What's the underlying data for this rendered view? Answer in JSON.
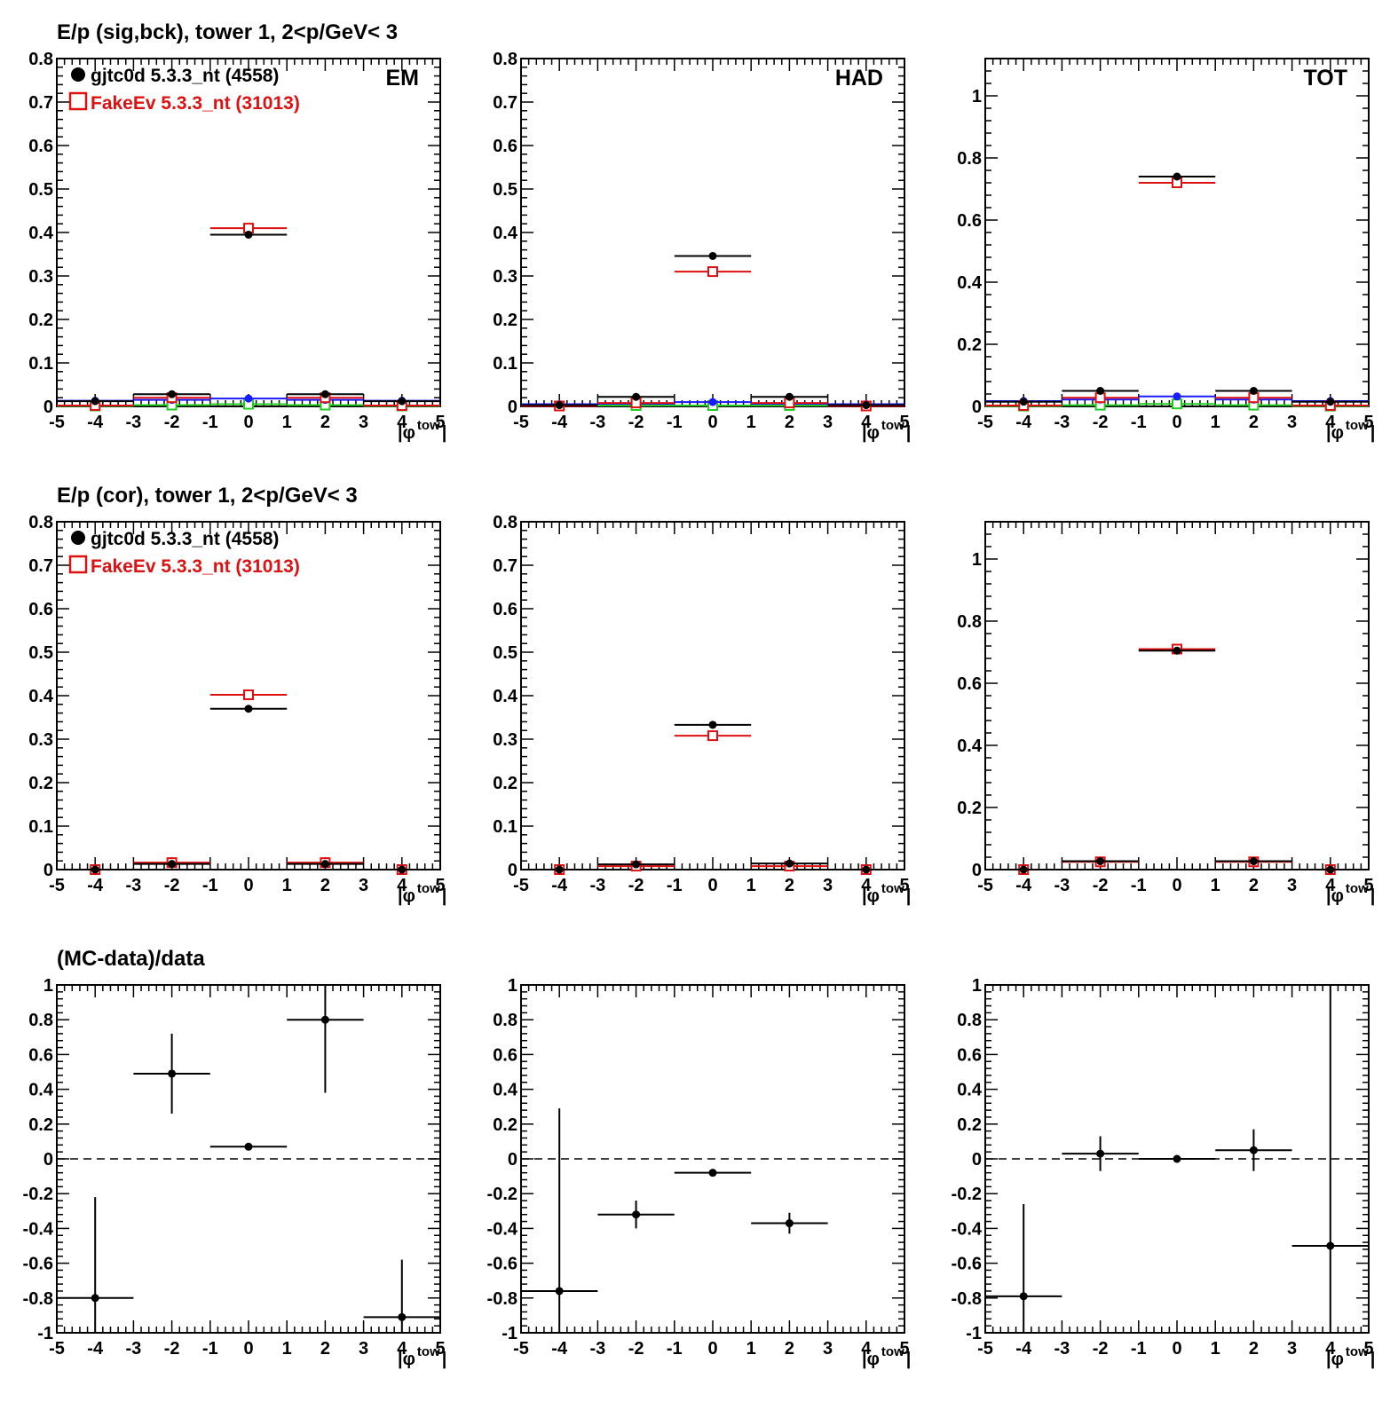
{
  "rows": [
    {
      "title": "E/p (sig,bck), tower 1,  2<p/GeV< 3"
    },
    {
      "title": "E/p (cor), tower 1,  2<p/GeV< 3"
    },
    {
      "title": "(MC-data)/data"
    }
  ],
  "legend": {
    "data_label": "gjtc0d 5.3.3_nt (4558)",
    "mc_label": "FakeEv 5.3.3_nt (31013)"
  },
  "colors": {
    "data": "#000000",
    "mc": "#dd1111",
    "background_blue": "#1a1aff",
    "background_green": "#22cc22"
  },
  "chart_data": [
    {
      "type": "scatter",
      "row": 0,
      "col": 0,
      "panel_label": "EM",
      "xlim": [
        -5,
        5
      ],
      "ylim": [
        0,
        0.8
      ],
      "xlabel": "|φ_tow|",
      "xticks": [
        -5,
        -4,
        -3,
        -2,
        -1,
        0,
        1,
        2,
        3,
        4,
        5
      ],
      "yticks": [
        0,
        0.1,
        0.2,
        0.3,
        0.4,
        0.5,
        0.6,
        0.7,
        0.8
      ],
      "yticklabels": [
        "0",
        "0.1",
        "0.2",
        "0.3",
        "0.4",
        "0.5",
        "0.6",
        "0.7",
        "0.8"
      ],
      "series": [
        {
          "name": "gjtc0d 5.3.3_nt (4558)",
          "color": "#000000",
          "marker": "dot",
          "points": [
            [
              -4,
              0.012
            ],
            [
              -2,
              0.028
            ],
            [
              0,
              0.395
            ],
            [
              2,
              0.028
            ],
            [
              4,
              0.012
            ]
          ]
        },
        {
          "name": "FakeEv 5.3.3_nt (31013)",
          "color": "#dd1111",
          "marker": "square",
          "points": [
            [
              -4,
              0.002
            ],
            [
              -2,
              0.02
            ],
            [
              0,
              0.41
            ],
            [
              2,
              0.02
            ],
            [
              4,
              0.002
            ]
          ]
        },
        {
          "color": "#1a1aff",
          "marker": "dot",
          "points": [
            [
              -4,
              0.013
            ],
            [
              -2,
              0.015
            ],
            [
              0,
              0.018
            ],
            [
              2,
              0.015
            ],
            [
              4,
              0.013
            ]
          ]
        },
        {
          "color": "#22cc22",
          "marker": "square",
          "points": [
            [
              -4,
              0.001
            ],
            [
              -2,
              0.003
            ],
            [
              0,
              0.005
            ],
            [
              2,
              0.003
            ],
            [
              4,
              0.001
            ]
          ]
        }
      ]
    },
    {
      "type": "scatter",
      "row": 0,
      "col": 1,
      "panel_label": "HAD",
      "xlim": [
        -5,
        5
      ],
      "ylim": [
        0,
        0.8
      ],
      "xlabel": "|φ_tow|",
      "xticks": [
        -5,
        -4,
        -3,
        -2,
        -1,
        0,
        1,
        2,
        3,
        4,
        5
      ],
      "yticks": [
        0,
        0.1,
        0.2,
        0.3,
        0.4,
        0.5,
        0.6,
        0.7,
        0.8
      ],
      "yticklabels": [
        "0",
        "0.1",
        "0.2",
        "0.3",
        "0.4",
        "0.5",
        "0.6",
        "0.7",
        "0.8"
      ],
      "series": [
        {
          "name": "gjtc0d 5.3.3_nt (4558)",
          "color": "#000000",
          "marker": "dot",
          "points": [
            [
              -4,
              0.003
            ],
            [
              -2,
              0.022
            ],
            [
              0,
              0.346
            ],
            [
              2,
              0.022
            ],
            [
              4,
              0.003
            ]
          ]
        },
        {
          "name": "FakeEv 5.3.3_nt (31013)",
          "color": "#dd1111",
          "marker": "square",
          "points": [
            [
              -4,
              0.001
            ],
            [
              -2,
              0.008
            ],
            [
              0,
              0.31
            ],
            [
              2,
              0.008
            ],
            [
              4,
              0.001
            ]
          ]
        },
        {
          "color": "#1a1aff",
          "marker": "dot",
          "points": [
            [
              -4,
              0.005
            ],
            [
              -2,
              0.006
            ],
            [
              0,
              0.01
            ],
            [
              2,
              0.006
            ],
            [
              4,
              0.005
            ]
          ]
        },
        {
          "color": "#22cc22",
          "marker": "square",
          "points": [
            [
              -4,
              0.001
            ],
            [
              -2,
              0.002
            ],
            [
              0,
              0.002
            ],
            [
              2,
              0.002
            ],
            [
              4,
              0.001
            ]
          ]
        }
      ]
    },
    {
      "type": "scatter",
      "row": 0,
      "col": 2,
      "panel_label": "TOT",
      "xlim": [
        -5,
        5
      ],
      "ylim": [
        0,
        1.12
      ],
      "xlabel": "|φ_tow|",
      "xticks": [
        -5,
        -4,
        -3,
        -2,
        -1,
        0,
        1,
        2,
        3,
        4,
        5
      ],
      "yticks": [
        0,
        0.2,
        0.4,
        0.6,
        0.8,
        1
      ],
      "yticklabels": [
        "0",
        "0.2",
        "0.4",
        "0.6",
        "0.8",
        "1"
      ],
      "series": [
        {
          "name": "gjtc0d 5.3.3_nt (4558)",
          "color": "#000000",
          "marker": "dot",
          "points": [
            [
              -4,
              0.015
            ],
            [
              -2,
              0.05
            ],
            [
              0,
              0.74
            ],
            [
              2,
              0.05
            ],
            [
              4,
              0.015
            ]
          ]
        },
        {
          "name": "FakeEv 5.3.3_nt (31013)",
          "color": "#dd1111",
          "marker": "square",
          "points": [
            [
              -4,
              0.003
            ],
            [
              -2,
              0.028
            ],
            [
              0,
              0.72
            ],
            [
              2,
              0.028
            ],
            [
              4,
              0.003
            ]
          ]
        },
        {
          "color": "#1a1aff",
          "marker": "dot",
          "points": [
            [
              -4,
              0.017
            ],
            [
              -2,
              0.022
            ],
            [
              0,
              0.032
            ],
            [
              2,
              0.022
            ],
            [
              4,
              0.017
            ]
          ]
        },
        {
          "color": "#22cc22",
          "marker": "square",
          "points": [
            [
              -4,
              0.001
            ],
            [
              -2,
              0.004
            ],
            [
              0,
              0.008
            ],
            [
              2,
              0.004
            ],
            [
              4,
              0.001
            ]
          ]
        }
      ]
    },
    {
      "type": "scatter",
      "row": 1,
      "col": 0,
      "xlim": [
        -5,
        5
      ],
      "ylim": [
        0,
        0.8
      ],
      "xlabel": "|φ_tow|",
      "xticks": [
        -5,
        -4,
        -3,
        -2,
        -1,
        0,
        1,
        2,
        3,
        4,
        5
      ],
      "yticks": [
        0,
        0.1,
        0.2,
        0.3,
        0.4,
        0.5,
        0.6,
        0.7,
        0.8
      ],
      "yticklabels": [
        "0",
        "0.1",
        "0.2",
        "0.3",
        "0.4",
        "0.5",
        "0.6",
        "0.7",
        "0.8"
      ],
      "series": [
        {
          "name": "gjtc0d 5.3.3_nt (4558)",
          "color": "#000000",
          "marker": "dot",
          "points": [
            [
              -4,
              0.0
            ],
            [
              -2,
              0.013
            ],
            [
              0,
              0.37
            ],
            [
              2,
              0.013
            ],
            [
              4,
              0.0
            ]
          ]
        },
        {
          "name": "FakeEv 5.3.3_nt (31013)",
          "color": "#dd1111",
          "marker": "square",
          "points": [
            [
              -4,
              0.0
            ],
            [
              -2,
              0.016
            ],
            [
              0,
              0.402
            ],
            [
              2,
              0.016
            ],
            [
              4,
              0.0
            ]
          ]
        }
      ]
    },
    {
      "type": "scatter",
      "row": 1,
      "col": 1,
      "xlim": [
        -5,
        5
      ],
      "ylim": [
        0,
        0.8
      ],
      "xlabel": "|φ_tow|",
      "xticks": [
        -5,
        -4,
        -3,
        -2,
        -1,
        0,
        1,
        2,
        3,
        4,
        5
      ],
      "yticks": [
        0,
        0.1,
        0.2,
        0.3,
        0.4,
        0.5,
        0.6,
        0.7,
        0.8
      ],
      "yticklabels": [
        "0",
        "0.1",
        "0.2",
        "0.3",
        "0.4",
        "0.5",
        "0.6",
        "0.7",
        "0.8"
      ],
      "series": [
        {
          "name": "gjtc0d 5.3.3_nt (4558)",
          "color": "#000000",
          "marker": "dot",
          "points": [
            [
              -4,
              0.0
            ],
            [
              -2,
              0.012
            ],
            [
              0,
              0.333
            ],
            [
              2,
              0.014
            ],
            [
              4,
              0.0
            ]
          ]
        },
        {
          "name": "FakeEv 5.3.3_nt (31013)",
          "color": "#dd1111",
          "marker": "square",
          "points": [
            [
              -4,
              0.0
            ],
            [
              -2,
              0.008
            ],
            [
              0,
              0.308
            ],
            [
              2,
              0.008
            ],
            [
              4,
              0.0
            ]
          ]
        }
      ]
    },
    {
      "type": "scatter",
      "row": 1,
      "col": 2,
      "xlim": [
        -5,
        5
      ],
      "ylim": [
        0,
        1.12
      ],
      "xlabel": "|φ_tow|",
      "xticks": [
        -5,
        -4,
        -3,
        -2,
        -1,
        0,
        1,
        2,
        3,
        4,
        5
      ],
      "yticks": [
        0,
        0.2,
        0.4,
        0.6,
        0.8,
        1
      ],
      "yticklabels": [
        "0",
        "0.2",
        "0.4",
        "0.6",
        "0.8",
        "1"
      ],
      "series": [
        {
          "name": "gjtc0d 5.3.3_nt (4558)",
          "color": "#000000",
          "marker": "dot",
          "points": [
            [
              -4,
              0.0
            ],
            [
              -2,
              0.027
            ],
            [
              0,
              0.705
            ],
            [
              2,
              0.027
            ],
            [
              4,
              0.0
            ]
          ]
        },
        {
          "name": "FakeEv 5.3.3_nt (31013)",
          "color": "#dd1111",
          "marker": "square",
          "points": [
            [
              -4,
              0.0
            ],
            [
              -2,
              0.025
            ],
            [
              0,
              0.71
            ],
            [
              2,
              0.025
            ],
            [
              4,
              0.0
            ]
          ]
        }
      ]
    },
    {
      "type": "scatter",
      "row": 2,
      "col": 0,
      "xlim": [
        -5,
        5
      ],
      "ylim": [
        -1,
        1
      ],
      "xlabel": "|φ_tow|",
      "zero_line": true,
      "xticks": [
        -5,
        -4,
        -3,
        -2,
        -1,
        0,
        1,
        2,
        3,
        4,
        5
      ],
      "yticks": [
        -1,
        -0.8,
        -0.6,
        -0.4,
        -0.2,
        0,
        0.2,
        0.4,
        0.6,
        0.8,
        1
      ],
      "yticklabels": [
        "-1",
        "-0.8",
        "-0.6",
        "-0.4",
        "-0.2",
        "0",
        "0.2",
        "0.4",
        "0.6",
        "0.8",
        "1"
      ],
      "series": [
        {
          "color": "#000000",
          "marker": "dot",
          "points": [
            [
              -4,
              -0.8,
              0.58
            ],
            [
              -2,
              0.49,
              0.23
            ],
            [
              0,
              0.07,
              0.0
            ],
            [
              2,
              0.8,
              0.42
            ],
            [
              4,
              -0.91,
              0.33
            ]
          ]
        }
      ]
    },
    {
      "type": "scatter",
      "row": 2,
      "col": 1,
      "xlim": [
        -5,
        5
      ],
      "ylim": [
        -1,
        1
      ],
      "xlabel": "|φ_tow|",
      "zero_line": true,
      "xticks": [
        -5,
        -4,
        -3,
        -2,
        -1,
        0,
        1,
        2,
        3,
        4,
        5
      ],
      "yticks": [
        -1,
        -0.8,
        -0.6,
        -0.4,
        -0.2,
        0,
        0.2,
        0.4,
        0.6,
        0.8,
        1
      ],
      "yticklabels": [
        "-1",
        "-0.8",
        "-0.6",
        "-0.4",
        "-0.2",
        "0",
        "0.2",
        "0.4",
        "0.6",
        "0.8",
        "1"
      ],
      "series": [
        {
          "color": "#000000",
          "marker": "dot",
          "points": [
            [
              -4,
              -0.76,
              1.05
            ],
            [
              -2,
              -0.32,
              0.08
            ],
            [
              0,
              -0.08,
              0.0
            ],
            [
              2,
              -0.37,
              0.06
            ]
          ]
        }
      ]
    },
    {
      "type": "scatter",
      "row": 2,
      "col": 2,
      "xlim": [
        -5,
        5
      ],
      "ylim": [
        -1,
        1
      ],
      "xlabel": "|φ_tow|",
      "zero_line": true,
      "xticks": [
        -5,
        -4,
        -3,
        -2,
        -1,
        0,
        1,
        2,
        3,
        4,
        5
      ],
      "yticks": [
        -1,
        -0.8,
        -0.6,
        -0.4,
        -0.2,
        0,
        0.2,
        0.4,
        0.6,
        0.8,
        1
      ],
      "yticklabels": [
        "-1",
        "-0.8",
        "-0.6",
        "-0.4",
        "-0.2",
        "0",
        "0.2",
        "0.4",
        "0.6",
        "0.8",
        "1"
      ],
      "series": [
        {
          "color": "#000000",
          "marker": "dot",
          "points": [
            [
              -4,
              -0.79,
              0.53
            ],
            [
              -2,
              0.03,
              0.1
            ],
            [
              0,
              0.0,
              0.0
            ],
            [
              2,
              0.05,
              0.12
            ],
            [
              4,
              -0.5,
              1.5
            ]
          ]
        }
      ]
    }
  ]
}
